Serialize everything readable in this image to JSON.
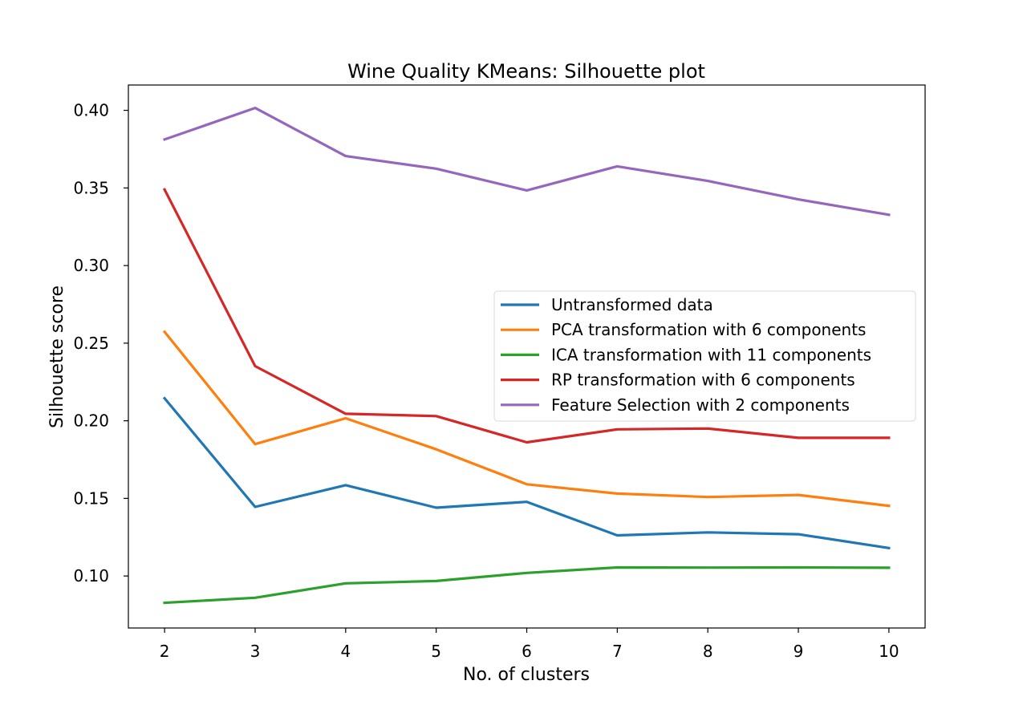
{
  "chart_data": {
    "type": "line",
    "title": "Wine Quality KMeans: Silhouette plot",
    "xlabel": "No. of clusters",
    "ylabel": "Silhouette score",
    "x": [
      2,
      3,
      4,
      5,
      6,
      7,
      8,
      9,
      10
    ],
    "xlim": [
      1.6,
      10.4
    ],
    "ylim": [
      0.0665,
      0.4163
    ],
    "yticks": [
      "0.10",
      "0.15",
      "0.20",
      "0.25",
      "0.30",
      "0.35",
      "0.40"
    ],
    "ytick_values": [
      0.1,
      0.15,
      0.2,
      0.25,
      0.3,
      0.35,
      0.4
    ],
    "xticks": [
      "2",
      "3",
      "4",
      "5",
      "6",
      "7",
      "8",
      "9",
      "10"
    ],
    "grid": false,
    "legend_position": "center-right",
    "series": [
      {
        "name": "Untransformed data",
        "color": "#1f77b4",
        "values": [
          0.2145,
          0.1445,
          0.1585,
          0.144,
          0.1478,
          0.1262,
          0.1281,
          0.1269,
          0.118
        ]
      },
      {
        "name": "PCA transformation with 6 components",
        "color": "#ff7f0e",
        "values": [
          0.2573,
          0.185,
          0.2016,
          0.1816,
          0.1591,
          0.1531,
          0.1509,
          0.1522,
          0.1452
        ]
      },
      {
        "name": "ICA transformation with 11 components",
        "color": "#2ca02c",
        "values": [
          0.0827,
          0.086,
          0.0953,
          0.0968,
          0.102,
          0.1055,
          0.1054,
          0.1055,
          0.1053
        ]
      },
      {
        "name": "RP transformation with 6 components",
        "color": "#d62728",
        "values": [
          0.349,
          0.2352,
          0.2045,
          0.203,
          0.1861,
          0.1945,
          0.195,
          0.189,
          0.189
        ]
      },
      {
        "name": "Feature Selection with 2 components",
        "color": "#9467bd",
        "values": [
          0.3812,
          0.4015,
          0.3705,
          0.3624,
          0.3484,
          0.3639,
          0.3545,
          0.3426,
          0.3327
        ]
      }
    ]
  }
}
